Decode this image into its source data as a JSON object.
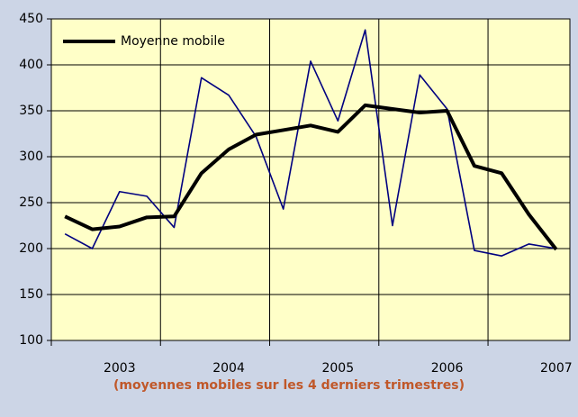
{
  "chart_data": {
    "type": "line",
    "note": "(moyennes mobiles sur les 4 derniers trimestres)",
    "categories": [
      null,
      null,
      "2003",
      null,
      null,
      null,
      "2004",
      null,
      null,
      null,
      "2005",
      null,
      null,
      null,
      "2006",
      null,
      null,
      null,
      "2007"
    ],
    "series": [
      {
        "color": "#000080",
        "values": [
          216,
          200,
          262,
          257,
          223,
          386,
          367,
          322,
          243,
          404,
          339,
          438,
          225,
          389,
          352,
          198,
          192,
          205,
          200
        ]
      },
      {
        "name": "Moyenne mobile",
        "color": "#000000",
        "values": [
          235,
          221,
          224,
          234,
          235,
          282,
          308,
          324,
          329,
          334,
          327,
          356,
          352,
          348,
          350,
          290,
          282,
          237,
          199
        ]
      }
    ],
    "ylim": [
      100,
      450
    ],
    "yticks": [
      100,
      150,
      200,
      250,
      300,
      350,
      400,
      450
    ],
    "grid": true,
    "legend": "top-left"
  }
}
